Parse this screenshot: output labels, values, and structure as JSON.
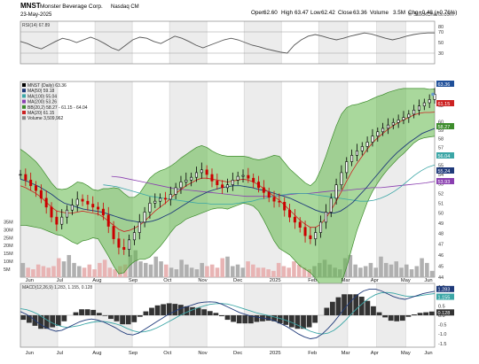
{
  "header": {
    "ticker": "MNST",
    "company": "Monster Beverage Corp.",
    "exchange": "Nasdaq CM",
    "date": "23-May-2025",
    "watermark": "© StockCharts.com",
    "open_label": "Open",
    "open": "62.60",
    "high_label": "High",
    "high": "63.47",
    "low_label": "Low",
    "low": "62.42",
    "close_label": "Close",
    "close": "63.36",
    "volume_label": "Volume",
    "volume": "3.5M",
    "chg_label": "Chg",
    "chg": "+0.48 (+0.76%)"
  },
  "colors": {
    "up": "#000000",
    "down": "#cc0000",
    "bb_fill": "#62b84a",
    "bb_line": "#3d8c2c",
    "ma50": "#1f3a7a",
    "ma100": "#3ba6a6",
    "ma200": "#8a3fb0",
    "ma20": "#cc2222",
    "rsi": "#555555",
    "macd": "#1f3a7a",
    "signal": "#3ba6a6",
    "hist": "#333333",
    "volume_up": "#b0b0b0",
    "volume_down": "#e8b4b4",
    "band_stripe": "#ececec"
  },
  "chart_data": [
    {
      "type": "line",
      "title": "RSI(14) 67.89",
      "ylim": [
        10,
        90
      ],
      "yticks": [
        "80",
        "70",
        "50",
        "30"
      ],
      "overbought": 70,
      "oversold": 30,
      "series": [
        {
          "name": "RSI(14)",
          "values": [
            52,
            48,
            42,
            38,
            45,
            52,
            58,
            55,
            50,
            55,
            60,
            55,
            48,
            40,
            35,
            45,
            55,
            60,
            58,
            52,
            48,
            55,
            62,
            58,
            52,
            45,
            40,
            45,
            50,
            55,
            58,
            55,
            50,
            45,
            42,
            38,
            35,
            32,
            30,
            45,
            55,
            62,
            65,
            62,
            58,
            55,
            58,
            62,
            65,
            68,
            66,
            62,
            58,
            55,
            58,
            62,
            65,
            67,
            68,
            68
          ]
        }
      ]
    },
    {
      "type": "line",
      "title": "MNST (Daily) 63.36",
      "ylim": [
        44,
        65
      ],
      "y_scale": "log",
      "yticks": [
        "62",
        "60",
        "59",
        "58",
        "57",
        "56",
        "55",
        "54",
        "53",
        "52",
        "51",
        "50",
        "49",
        "48",
        "47",
        "46",
        "45",
        "44"
      ],
      "x_labels": [
        "Jun",
        "Jul",
        "Aug",
        "Sep",
        "Oct",
        "Nov",
        "Dec",
        "2025",
        "Feb",
        "Mar",
        "Apr",
        "May",
        "Jun"
      ],
      "tags": [
        {
          "label": "63.36",
          "value": 63.36
        },
        {
          "label": "61.15",
          "value": 61.15
        },
        {
          "label": "58.27",
          "value": 58.27
        },
        {
          "label": "56.04",
          "value": 56.04
        },
        {
          "label": "55.24",
          "value": 55.24
        },
        {
          "label": "53.93",
          "value": 53.93
        }
      ],
      "legend": [
        "MNST (Daily) 63.36",
        "MA(50) 59.18",
        "MA(100) 55.04",
        "MA(200) 53.26",
        "BB(20,2) 58.27 - 61.15 - 64.04",
        "MA(20) 61.15",
        "Volume 3,509,962"
      ],
      "close": [
        54.0,
        53.4,
        52.8,
        52.3,
        51.5,
        50.6,
        49.6,
        48.9,
        49.6,
        50.3,
        50.8,
        51.4,
        51.2,
        50.9,
        50.6,
        50.4,
        49.8,
        48.7,
        47.5,
        46.7,
        46.5,
        47.4,
        48.1,
        49.1,
        50.1,
        51.0,
        51.2,
        51.5,
        51.4,
        51.9,
        52.6,
        53.2,
        53.4,
        53.7,
        54.2,
        54.5,
        54.0,
        53.3,
        52.9,
        52.6,
        52.9,
        53.4,
        53.8,
        53.9,
        53.6,
        53.2,
        52.6,
        52.1,
        51.6,
        51.2,
        51.1,
        50.3,
        49.6,
        49.1,
        48.6,
        47.8,
        47.5,
        48.1,
        49.1,
        50.1,
        51.5,
        52.9,
        54.2,
        55.4,
        56.1,
        56.6,
        57.1,
        57.6,
        58.3,
        58.8,
        59.2,
        59.6,
        59.9,
        60.2,
        60.5,
        60.9,
        61.4,
        61.9,
        62.3,
        62.7,
        63.36
      ],
      "ma20": [
        52.8,
        52.6,
        52.3,
        52.0,
        51.6,
        51.1,
        50.6,
        50.2,
        50.1,
        50.0,
        50.0,
        50.1,
        50.2,
        50.1,
        50.0,
        49.9,
        49.6,
        49.2,
        48.8,
        48.4,
        48.2,
        48.3,
        48.5,
        48.8,
        49.2,
        49.7,
        50.2,
        50.6,
        51.0,
        51.5,
        52.0,
        52.4,
        52.8,
        53.1,
        53.4,
        53.6,
        53.6,
        53.5,
        53.4,
        53.3,
        53.2,
        53.3,
        53.4,
        53.5,
        53.4,
        53.2,
        52.9,
        52.5,
        52.1,
        51.7,
        51.3,
        50.8,
        50.3,
        49.8,
        49.3,
        48.9,
        48.6,
        48.6,
        48.9,
        49.5,
        50.3,
        51.2,
        52.2,
        53.3,
        54.3,
        55.2,
        56.0,
        56.8,
        57.5,
        58.1,
        58.6,
        59.1,
        59.5,
        59.9,
        60.2,
        60.5,
        60.8,
        61.0,
        61.1,
        61.1,
        61.15
      ],
      "ma50": [
        53.5,
        53.3,
        53.0,
        52.7,
        52.3,
        51.9,
        51.4,
        51.0,
        50.8,
        50.6,
        50.4,
        50.3,
        50.2,
        50.1,
        49.9,
        49.7,
        49.5,
        49.3,
        49.2,
        49.1,
        49.1,
        49.2,
        49.4,
        49.7,
        50.0,
        50.4,
        50.8,
        51.2,
        51.6,
        51.9,
        52.2,
        52.4,
        52.6,
        52.7,
        52.8,
        52.8,
        52.7,
        52.6,
        52.4,
        52.3,
        52.1,
        51.9,
        51.7,
        51.5,
        51.2,
        50.9,
        50.6,
        50.3,
        50.1,
        50.0,
        50.0,
        50.2,
        50.6,
        51.1,
        51.8,
        52.5,
        53.3,
        54.1,
        54.9,
        55.7,
        56.4,
        57.0,
        57.6,
        58.1,
        58.6,
        58.9,
        59.18
      ],
      "ma100": [
        52.9,
        52.8,
        52.7,
        52.5,
        52.3,
        52.1,
        51.9,
        51.7,
        51.6,
        51.5,
        51.4,
        51.3,
        51.2,
        51.1,
        51.0,
        51.0,
        50.9,
        50.9,
        50.9,
        50.9,
        51.0,
        51.1,
        51.2,
        51.4,
        51.5,
        51.7,
        51.8,
        51.9,
        52.0,
        52.0,
        52.0,
        51.9,
        51.8,
        51.7,
        51.6,
        51.5,
        51.4,
        51.3,
        51.2,
        51.2,
        51.3,
        51.5,
        51.8,
        52.2,
        52.7,
        53.3,
        53.9,
        54.4,
        54.8,
        55.04
      ],
      "ma200": [
        53.8,
        53.7,
        53.5,
        53.3,
        53.1,
        52.9,
        52.7,
        52.5,
        52.4,
        52.3,
        52.2,
        52.1,
        52.0,
        51.9,
        51.8,
        51.7,
        51.7,
        51.7,
        51.7,
        51.8,
        51.9,
        52.0,
        52.0,
        52.1,
        52.2,
        52.3,
        52.3,
        52.4,
        52.5,
        52.6,
        52.6,
        52.7,
        52.8,
        52.9,
        53.0,
        53.1,
        53.26
      ],
      "bb_upper": [
        56.8,
        56.4,
        55.9,
        55.4,
        54.7,
        53.9,
        53.1,
        52.5,
        52.4,
        52.5,
        52.8,
        53.2,
        53.1,
        52.8,
        52.4,
        52.3,
        52.5,
        52.5,
        52.6,
        52.5,
        52.0,
        51.6,
        51.6,
        52.0,
        52.8,
        53.6,
        54.1,
        54.4,
        54.6,
        54.9,
        55.3,
        55.8,
        56.2,
        56.6,
        57.0,
        57.2,
        57.0,
        56.6,
        56.3,
        56.1,
        56.0,
        56.0,
        56.0,
        56.0,
        55.9,
        55.7,
        55.6,
        55.7,
        55.9,
        56.1,
        56.0,
        55.3,
        54.6,
        54.1,
        53.6,
        53.1,
        52.8,
        53.3,
        54.5,
        56.0,
        57.8,
        59.5,
        60.9,
        61.7,
        62.0,
        62.1,
        62.3,
        62.5,
        62.8,
        63.1,
        63.3,
        63.6,
        63.8,
        64.0,
        64.1,
        64.1,
        64.1,
        64.1,
        64.1,
        64.0,
        64.04
      ],
      "bb_lower": [
        48.8,
        48.8,
        48.7,
        48.6,
        48.5,
        48.3,
        48.1,
        47.9,
        47.8,
        47.5,
        47.2,
        47.0,
        47.3,
        47.4,
        47.6,
        47.5,
        46.7,
        45.9,
        45.0,
        44.3,
        44.4,
        45.0,
        45.4,
        45.6,
        45.6,
        45.8,
        46.3,
        46.8,
        47.4,
        48.1,
        48.7,
        49.0,
        49.4,
        49.6,
        49.8,
        50.0,
        50.2,
        50.4,
        50.5,
        50.5,
        50.4,
        50.6,
        50.8,
        51.0,
        50.9,
        50.7,
        50.2,
        49.3,
        48.3,
        47.3,
        46.6,
        46.3,
        46.0,
        45.5,
        45.0,
        44.7,
        44.4,
        43.9,
        43.3,
        43.0,
        42.8,
        42.9,
        43.5,
        44.9,
        46.6,
        48.3,
        49.7,
        51.1,
        52.2,
        53.1,
        53.9,
        54.6,
        55.2,
        55.8,
        56.3,
        56.9,
        57.5,
        57.9,
        58.1,
        58.2,
        58.27
      ]
    },
    {
      "type": "bar",
      "title": "Volume 3,509,962",
      "ylim": [
        0,
        38
      ],
      "yticks": [
        "35M",
        "30M",
        "25M",
        "20M",
        "15M",
        "10M",
        "5M"
      ],
      "values_millions": [
        9,
        6,
        5,
        8,
        7,
        6,
        7,
        12,
        10,
        14,
        9,
        7,
        6,
        8,
        5,
        9,
        11,
        6,
        5,
        7,
        8,
        14,
        17,
        10,
        9,
        8,
        13,
        10,
        8,
        6,
        5,
        11,
        8,
        6,
        5,
        9,
        7,
        8,
        6,
        12,
        13,
        7,
        8,
        6,
        10,
        8,
        6,
        6,
        5,
        4,
        9,
        7,
        6,
        10,
        8,
        6,
        5,
        7,
        9,
        11,
        8,
        6,
        5,
        12,
        14,
        8,
        6,
        7,
        9,
        6,
        13,
        9,
        8,
        10,
        6,
        8,
        5,
        7,
        12,
        9,
        4
      ]
    },
    {
      "type": "line",
      "title": "MACD(12,26,9) 1.283, 1.155, 0.128",
      "ylim": [
        -1.7,
        1.7
      ],
      "yticks": [
        "1.5",
        "1.0",
        "0.5",
        "0.0",
        "-0.5",
        "-1.0",
        "-1.5"
      ],
      "tags": [
        {
          "label": "1.283",
          "value": 1.283
        },
        {
          "label": "1.155",
          "value": 1.155
        },
        {
          "label": "0.128",
          "value": 0.128
        }
      ],
      "series": [
        {
          "name": "MACD",
          "values": [
            0.2,
            0.05,
            -0.15,
            -0.4,
            -0.6,
            -0.75,
            -0.85,
            -0.8,
            -0.65,
            -0.5,
            -0.35,
            -0.25,
            -0.2,
            -0.25,
            -0.35,
            -0.5,
            -0.65,
            -0.85,
            -1.0,
            -1.05,
            -0.95,
            -0.75,
            -0.55,
            -0.35,
            -0.15,
            0.05,
            0.2,
            0.35,
            0.45,
            0.55,
            0.65,
            0.7,
            0.72,
            0.7,
            0.6,
            0.45,
            0.3,
            0.15,
            0.05,
            -0.05,
            -0.1,
            -0.15,
            -0.2,
            -0.3,
            -0.45,
            -0.6,
            -0.8,
            -1.0,
            -1.15,
            -1.25,
            -1.2,
            -1.0,
            -0.7,
            -0.35,
            0.05,
            0.45,
            0.8,
            1.1,
            1.3,
            1.4,
            1.4,
            1.3,
            1.15,
            1.0,
            0.9,
            0.85,
            0.95,
            1.05,
            1.15,
            1.22,
            1.28
          ]
        },
        {
          "name": "Signal",
          "values": [
            0.35,
            0.3,
            0.2,
            0.05,
            -0.15,
            -0.35,
            -0.5,
            -0.6,
            -0.65,
            -0.6,
            -0.55,
            -0.45,
            -0.38,
            -0.33,
            -0.33,
            -0.38,
            -0.45,
            -0.55,
            -0.7,
            -0.82,
            -0.9,
            -0.88,
            -0.8,
            -0.68,
            -0.52,
            -0.35,
            -0.18,
            0.0,
            0.15,
            0.28,
            0.4,
            0.5,
            0.58,
            0.62,
            0.63,
            0.6,
            0.52,
            0.42,
            0.32,
            0.22,
            0.12,
            0.05,
            -0.02,
            -0.1,
            -0.18,
            -0.28,
            -0.4,
            -0.55,
            -0.7,
            -0.85,
            -0.95,
            -1.0,
            -0.95,
            -0.8,
            -0.55,
            -0.25,
            0.1,
            0.4,
            0.68,
            0.92,
            1.1,
            1.2,
            1.22,
            1.18,
            1.1,
            1.03,
            1.0,
            1.02,
            1.07,
            1.12,
            1.155
          ]
        }
      ]
    }
  ]
}
